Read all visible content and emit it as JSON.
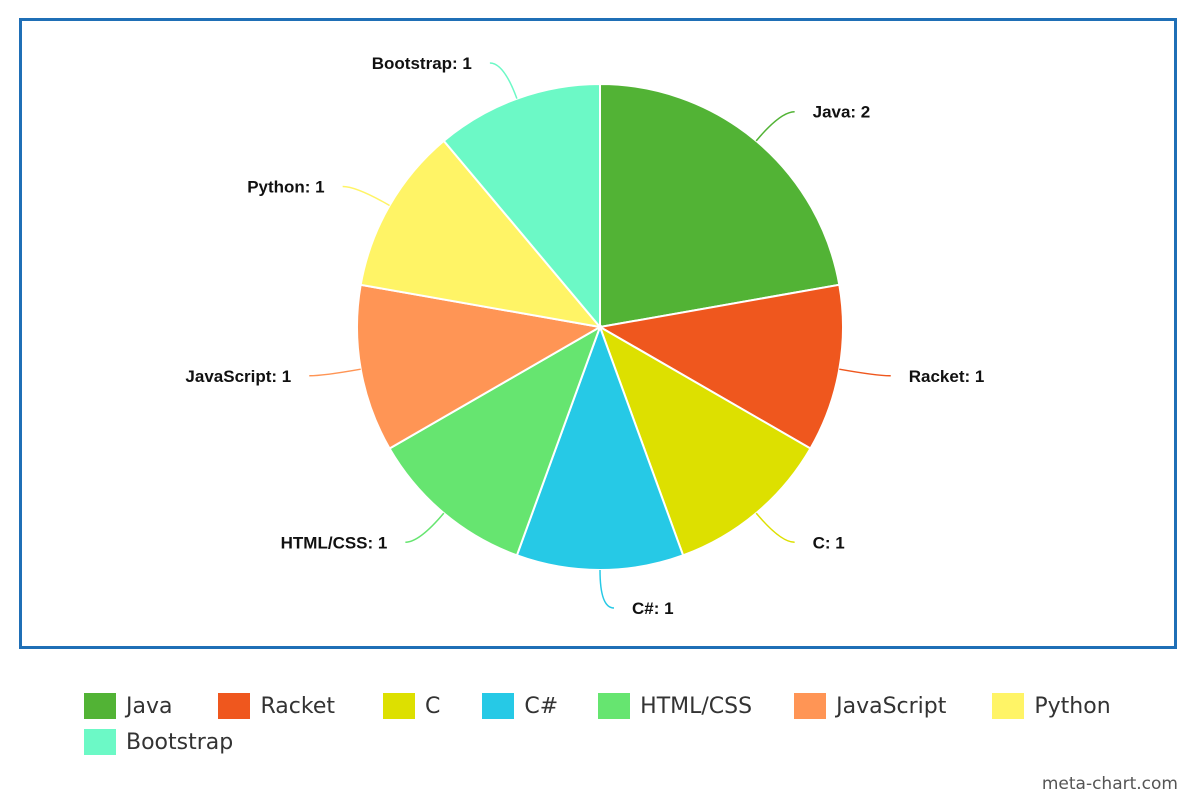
{
  "chart_data": {
    "type": "pie",
    "title": "",
    "slices": [
      {
        "label": "Java",
        "value": 2,
        "color": "#52b335",
        "display": "Java: 2"
      },
      {
        "label": "Racket",
        "value": 1,
        "color": "#ef571e",
        "display": "Racket: 1"
      },
      {
        "label": "C",
        "value": 1,
        "color": "#dde000",
        "display": "C: 1"
      },
      {
        "label": "C#",
        "value": 1,
        "color": "#26c9e6",
        "display": "C#: 1"
      },
      {
        "label": "HTML/CSS",
        "value": 1,
        "color": "#66e570",
        "display": "HTML/CSS: 1"
      },
      {
        "label": "JavaScript",
        "value": 1,
        "color": "#ff9555",
        "display": "JavaScript: 1"
      },
      {
        "label": "Python",
        "value": 1,
        "color": "#fff466",
        "display": "Python: 1"
      },
      {
        "label": "Bootstrap",
        "value": 1,
        "color": "#6cf9c6",
        "display": "Bootstrap: 1"
      }
    ],
    "legend_position": "bottom",
    "start_angle": "12 o'clock, clockwise"
  },
  "legend": {
    "rows": [
      [
        {
          "label": "Java",
          "color": "#52b335"
        },
        {
          "label": "Racket",
          "color": "#ef571e"
        },
        {
          "label": "C",
          "color": "#dde000"
        },
        {
          "label": "C#",
          "color": "#26c9e6"
        },
        {
          "label": "HTML/CSS",
          "color": "#66e570"
        },
        {
          "label": "JavaScript",
          "color": "#ff9555"
        },
        {
          "label": "Python",
          "color": "#fff466"
        }
      ],
      [
        {
          "label": "Bootstrap",
          "color": "#6cf9c6"
        }
      ]
    ]
  },
  "watermark": "meta-chart.com",
  "frame_color": "#1f6fb6"
}
